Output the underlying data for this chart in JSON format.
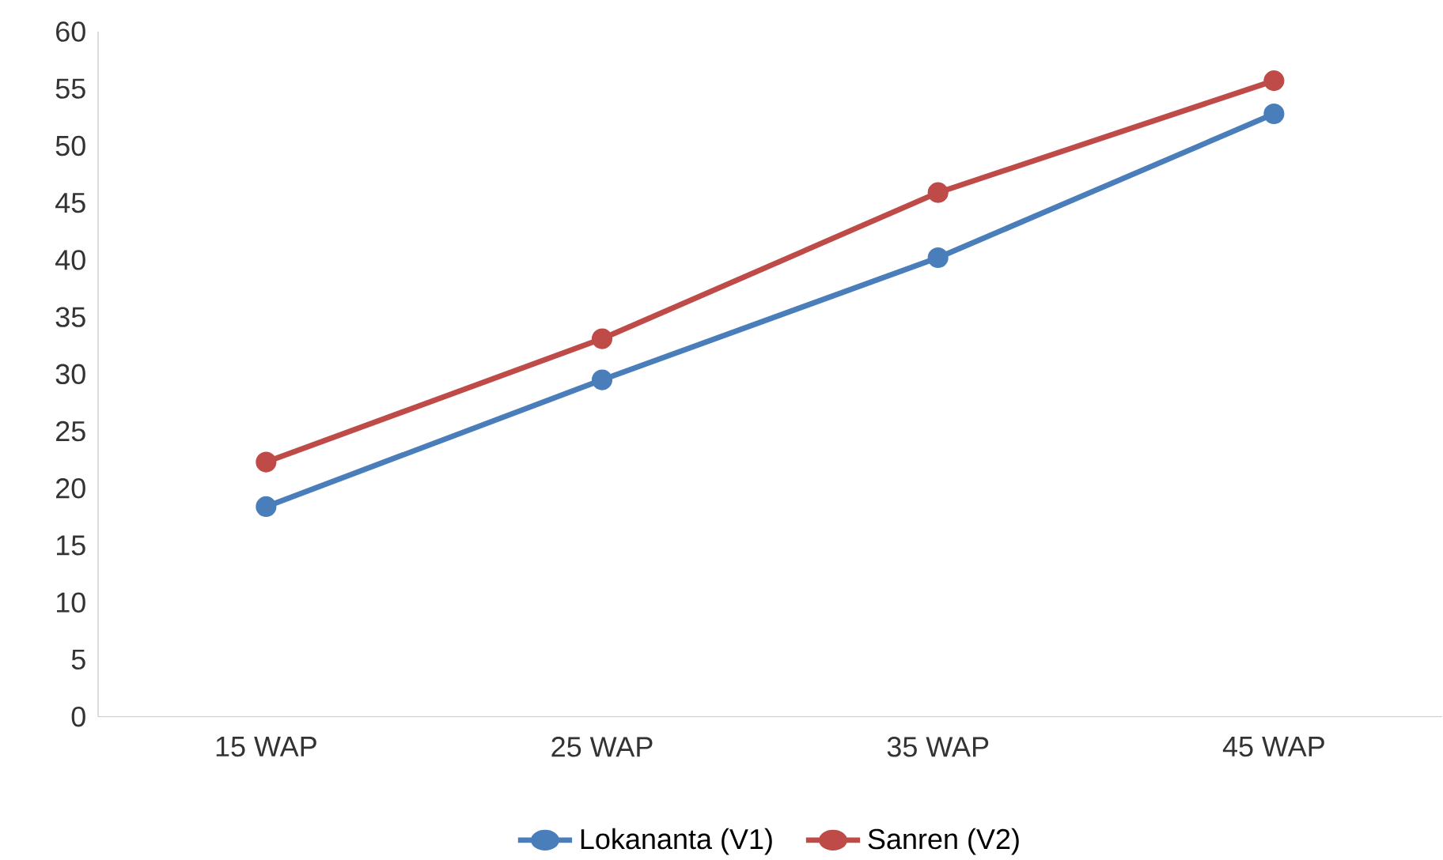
{
  "chart_data": {
    "type": "line",
    "categories": [
      "15 WAP",
      "25 WAP",
      "35 WAP",
      "45 WAP"
    ],
    "series": [
      {
        "name": "Lokananta (V1)",
        "color": "#4a7ebb",
        "values": [
          18.4,
          29.5,
          40.2,
          52.8
        ]
      },
      {
        "name": "Sanren (V2)",
        "color": "#be4b48",
        "values": [
          22.3,
          33.1,
          45.9,
          55.7
        ]
      }
    ],
    "ylim": [
      0,
      60
    ],
    "yticks": [
      0,
      5,
      10,
      15,
      20,
      25,
      30,
      35,
      40,
      45,
      50,
      55,
      60
    ],
    "grid": false,
    "legend": "bottom",
    "marker": "circle",
    "line_style": "solid"
  }
}
